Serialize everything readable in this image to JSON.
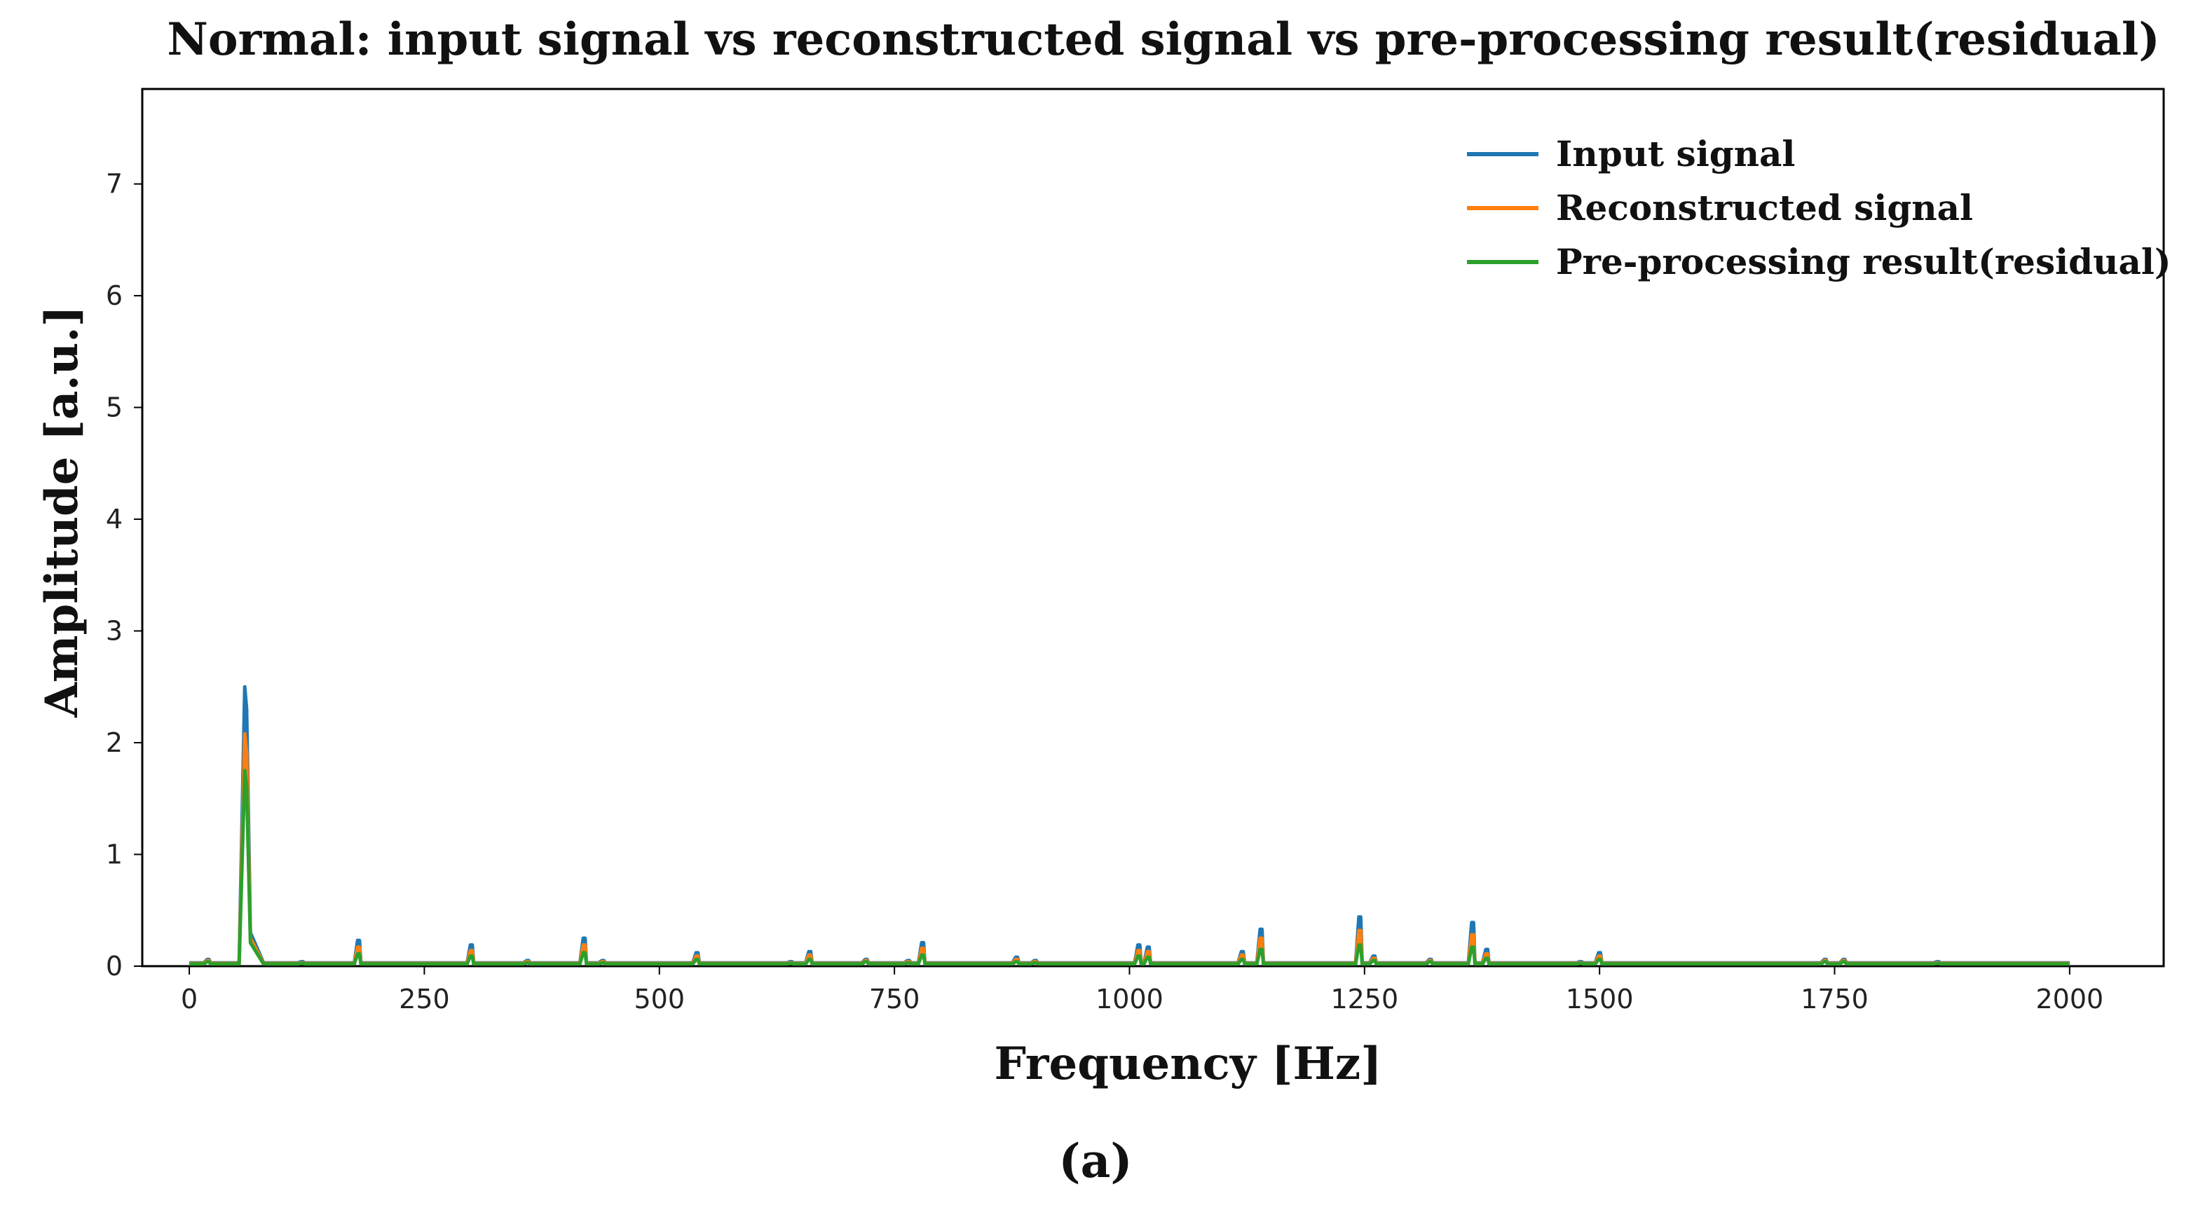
{
  "caption": "(a)",
  "chart_data": {
    "type": "line",
    "title": "Normal: input signal vs reconstructed signal vs pre-processing result(residual)",
    "xlabel": "Frequency [Hz]",
    "ylabel": "Amplitude [a.u.]",
    "xlim": [
      -50,
      2100
    ],
    "ylim": [
      0,
      7.85
    ],
    "x_ticks": [
      0,
      250,
      500,
      750,
      1000,
      1250,
      1500,
      1750,
      2000
    ],
    "x_tick_labels": [
      "0",
      "250",
      "500",
      "750",
      "1000",
      "1250",
      "1500",
      "1750",
      "2000"
    ],
    "y_ticks": [
      0,
      1,
      2,
      3,
      4,
      5,
      6,
      7
    ],
    "y_tick_labels": [
      "0",
      "1",
      "2",
      "3",
      "4",
      "5",
      "6",
      "7"
    ],
    "legend_position": "top-right",
    "x_range": [
      0,
      2000
    ],
    "baseline": {
      "Input signal": 0.03,
      "Reconstructed signal": 0.025,
      "Pre-processing result(residual)": 0.02
    },
    "peak_frequencies": [
      20,
      60,
      120,
      180,
      300,
      360,
      420,
      440,
      540,
      640,
      660,
      720,
      765,
      780,
      880,
      900,
      1010,
      1020,
      1120,
      1140,
      1245,
      1260,
      1320,
      1365,
      1380,
      1480,
      1500,
      1620,
      1740,
      1760,
      1860,
      1980
    ],
    "series": [
      {
        "name": "Input signal",
        "color": "#1f77b4",
        "peak_values": [
          0.06,
          2.5,
          0.04,
          0.23,
          0.19,
          0.05,
          0.25,
          0.05,
          0.12,
          0.04,
          0.13,
          0.06,
          0.05,
          0.21,
          0.08,
          0.05,
          0.19,
          0.17,
          0.13,
          0.33,
          0.44,
          0.09,
          0.06,
          0.39,
          0.15,
          0.04,
          0.12,
          0.03,
          0.06,
          0.06,
          0.04,
          0.03
        ]
      },
      {
        "name": "Reconstructed signal",
        "color": "#ff7f0e",
        "peak_values": [
          0.05,
          2.08,
          0.03,
          0.17,
          0.14,
          0.04,
          0.19,
          0.04,
          0.09,
          0.03,
          0.1,
          0.05,
          0.04,
          0.16,
          0.06,
          0.04,
          0.14,
          0.13,
          0.1,
          0.25,
          0.32,
          0.07,
          0.05,
          0.28,
          0.11,
          0.03,
          0.09,
          0.025,
          0.05,
          0.05,
          0.03,
          0.025
        ]
      },
      {
        "name": "Pre-processing result(residual)",
        "color": "#2ca02c",
        "peak_values": [
          0.04,
          1.75,
          0.025,
          0.11,
          0.09,
          0.03,
          0.12,
          0.03,
          0.06,
          0.025,
          0.06,
          0.04,
          0.03,
          0.1,
          0.04,
          0.03,
          0.09,
          0.08,
          0.06,
          0.15,
          0.19,
          0.05,
          0.04,
          0.17,
          0.07,
          0.025,
          0.06,
          0.02,
          0.04,
          0.04,
          0.025,
          0.02
        ]
      }
    ]
  }
}
